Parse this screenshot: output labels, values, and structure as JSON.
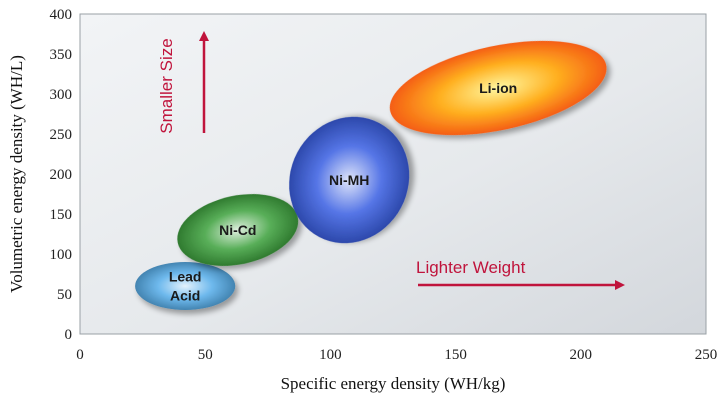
{
  "chart_data": {
    "type": "scatter",
    "title": "",
    "xlabel": "Specific energy density (WH/kg)",
    "ylabel": "Volumetric energy density (WH/L)",
    "xlim": [
      0,
      250
    ],
    "ylim": [
      0,
      400
    ],
    "xticks": [
      0,
      50,
      100,
      150,
      200,
      250
    ],
    "yticks": [
      0,
      50,
      100,
      150,
      200,
      250,
      300,
      350,
      400
    ],
    "grid": false,
    "series": [
      {
        "name": "Lead Acid",
        "label_lines": [
          "Lead",
          "Acid"
        ],
        "x": [
          22,
          62
        ],
        "y": [
          30,
          90
        ],
        "color": "#4aa8e8"
      },
      {
        "name": "Ni-Cd",
        "label_lines": [
          "Ni-Cd"
        ],
        "x": [
          38,
          88
        ],
        "y": [
          75,
          185
        ],
        "color": "#2e9a2e"
      },
      {
        "name": "Ni-MH",
        "label_lines": [
          "Ni-MH"
        ],
        "x": [
          82,
          133
        ],
        "y": [
          105,
          280
        ],
        "color": "#2a52e0"
      },
      {
        "name": "Li-ion",
        "label_lines": [
          "Li-ion"
        ],
        "x": [
          122,
          212
        ],
        "y": [
          240,
          375
        ],
        "color": "#ff6a1a"
      }
    ],
    "annotations": [
      {
        "text": "Smaller Size",
        "direction": "up"
      },
      {
        "text": "Lighter Weight",
        "direction": "right"
      }
    ]
  }
}
